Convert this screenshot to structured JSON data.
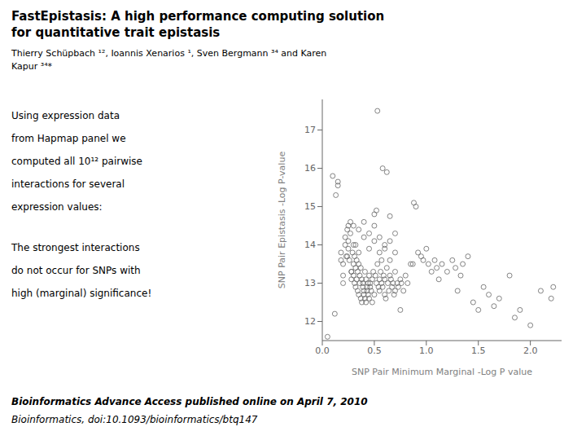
{
  "chart_data": {
    "type": "scatter",
    "title": [
      "FastEpistasis: A high performance computing solution",
      "for quantitative trait epistasis"
    ],
    "subtitle": [
      "Thierry Schüpbach ¹², Ioannis Xenarios ¹, Sven Bergmann ³⁴ and Karen",
      "Kapur ³⁴*"
    ],
    "annotations": [
      [
        "Using expression data",
        "from Hapmap panel we",
        "computed all 10¹² pairwise",
        "interactions for several",
        "expression values:"
      ],
      [
        "The strongest interactions",
        "do not occur for SNPs with",
        "high (marginal) significance!"
      ],
      [
        "Bioinformatics Advance Access published online on April 7, 2010",
        "Bioinformatics, doi:10.1093/bioinformatics/btq147"
      ]
    ],
    "xlabel": "SNP Pair Minimum Marginal -Log P value",
    "ylabel": "SNP Pair Epistasis -Log P-value",
    "xlim": [
      0.0,
      2.3
    ],
    "ylim": [
      11.5,
      17.8
    ],
    "xticks": [
      {
        "value": 0.0,
        "label": "0.0"
      },
      0.5,
      {
        "value": 1.0,
        "label": "1.0"
      },
      1.5,
      {
        "value": 2.0,
        "label": "2.0"
      }
    ],
    "yticks": [
      12,
      13,
      14,
      15,
      16,
      17
    ],
    "grid": false,
    "color": "#666666",
    "marker": "circle",
    "x": [
      0.05,
      0.12,
      0.15,
      0.15,
      0.18,
      0.2,
      0.2,
      0.22,
      0.22,
      0.23,
      0.24,
      0.25,
      0.25,
      0.25,
      0.26,
      0.27,
      0.27,
      0.28,
      0.28,
      0.29,
      0.3,
      0.3,
      0.3,
      0.31,
      0.31,
      0.32,
      0.32,
      0.33,
      0.33,
      0.34,
      0.34,
      0.35,
      0.35,
      0.36,
      0.36,
      0.37,
      0.37,
      0.38,
      0.38,
      0.39,
      0.39,
      0.4,
      0.4,
      0.41,
      0.41,
      0.42,
      0.42,
      0.43,
      0.43,
      0.44,
      0.44,
      0.45,
      0.45,
      0.46,
      0.46,
      0.47,
      0.48,
      0.48,
      0.49,
      0.5,
      0.5,
      0.51,
      0.52,
      0.52,
      0.53,
      0.54,
      0.55,
      0.55,
      0.56,
      0.57,
      0.57,
      0.58,
      0.59,
      0.6,
      0.6,
      0.61,
      0.62,
      0.63,
      0.64,
      0.65,
      0.65,
      0.66,
      0.67,
      0.68,
      0.69,
      0.7,
      0.7,
      0.72,
      0.73,
      0.75,
      0.76,
      0.78,
      0.8,
      0.82,
      0.85,
      0.87,
      0.88,
      0.9,
      0.92,
      0.95,
      0.97,
      1.0,
      1.02,
      1.05,
      1.08,
      1.1,
      1.12,
      1.15,
      1.2,
      1.25,
      1.28,
      1.3,
      1.33,
      1.35,
      1.4,
      1.45,
      1.5,
      1.55,
      1.6,
      1.65,
      1.7,
      1.8,
      1.85,
      1.9,
      2.0,
      2.1,
      2.2,
      2.22,
      0.1,
      0.13,
      0.18,
      0.2,
      0.24,
      0.28,
      0.32,
      0.35,
      0.4,
      0.45,
      0.5,
      0.55,
      0.6,
      0.65,
      0.7,
      0.75,
      0.3,
      0.35,
      0.4,
      0.45,
      0.5,
      0.55,
      0.6,
      0.65,
      0.7,
      0.53,
      0.58,
      0.62
    ],
    "values": [
      11.6,
      12.2,
      15.55,
      15.65,
      13.8,
      13.2,
      13.0,
      14.0,
      14.2,
      13.7,
      14.4,
      14.5,
      13.9,
      14.1,
      13.6,
      14.3,
      14.6,
      13.1,
      13.3,
      13.8,
      14.0,
      13.2,
      13.5,
      13.0,
      13.7,
      12.9,
      13.4,
      13.1,
      13.6,
      12.8,
      13.3,
      12.7,
      13.5,
      13.0,
      13.2,
      12.6,
      13.4,
      12.5,
      13.1,
      12.9,
      13.0,
      12.8,
      12.7,
      13.3,
      12.6,
      13.1,
      12.5,
      12.9,
      12.8,
      13.0,
      12.7,
      12.6,
      13.2,
      12.9,
      13.0,
      12.8,
      13.1,
      12.5,
      13.3,
      12.7,
      14.8,
      13.2,
      14.9,
      13.0,
      13.5,
      12.9,
      13.1,
      12.8,
      13.3,
      13.6,
      13.0,
      12.9,
      13.2,
      13.1,
      12.7,
      12.6,
      13.4,
      13.0,
      12.8,
      13.2,
      14.75,
      13.1,
      12.9,
      13.0,
      12.7,
      13.3,
      12.8,
      13.0,
      12.9,
      13.1,
      13.0,
      12.8,
      13.2,
      13.0,
      13.5,
      13.5,
      15.1,
      15.0,
      13.8,
      13.7,
      13.6,
      13.9,
      13.5,
      13.3,
      13.6,
      13.4,
      13.1,
      13.5,
      13.3,
      13.6,
      13.4,
      12.8,
      13.2,
      13.5,
      13.7,
      12.5,
      12.3,
      12.9,
      12.7,
      12.4,
      12.6,
      13.2,
      12.1,
      12.3,
      11.9,
      12.8,
      12.6,
      12.9,
      15.8,
      15.3,
      13.6,
      13.5,
      13.7,
      13.3,
      14.0,
      13.8,
      14.2,
      13.9,
      14.1,
      13.8,
      13.9,
      13.6,
      13.8,
      12.3,
      14.5,
      14.4,
      14.6,
      14.3,
      14.5,
      14.2,
      14.0,
      14.1,
      14.3,
      17.5,
      16.0,
      15.9
    ]
  }
}
